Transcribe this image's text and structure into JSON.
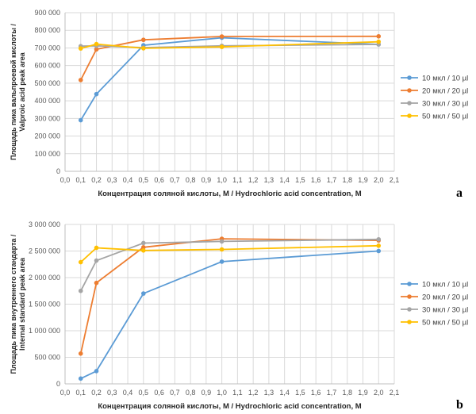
{
  "colors": {
    "10": "#5b9bd5",
    "20": "#ed7d31",
    "30": "#a5a5a5",
    "50": "#ffc000"
  },
  "chart_data": [
    {
      "type": "line",
      "panel": "a",
      "ylabel_line1": "Площадь пика вальпроевой кислоты /",
      "ylabel_line2": "Valproic acid peak area",
      "xlabel": "Концентрация соляной кислоты, М / Hydrochloric acid concentration, M",
      "xlim": [
        0,
        2.1
      ],
      "ylim": [
        0,
        900000
      ],
      "xticks": [
        "0,0",
        "0,1",
        "0,2",
        "0,3",
        "0,4",
        "0,5",
        "0,6",
        "0,7",
        "0,8",
        "0,9",
        "1,0",
        "1,1",
        "1,2",
        "1,3",
        "1,4",
        "1,5",
        "1,6",
        "1,7",
        "1,8",
        "1,9",
        "2,0",
        "2,1"
      ],
      "yticks": [
        "0",
        "100 000",
        "200 000",
        "300 000",
        "400 000",
        "500 000",
        "600 000",
        "700 000",
        "800 000",
        "900 000"
      ],
      "x": [
        0.1,
        0.2,
        0.5,
        1.0,
        2.0
      ],
      "series": [
        {
          "name": "10 мкл / 10 µl",
          "key": "10",
          "values": [
            290000,
            438000,
            715000,
            758000,
            720000
          ]
        },
        {
          "name": "20 мкл / 20 µl",
          "key": "20",
          "values": [
            518000,
            692000,
            746000,
            765000,
            766000
          ]
        },
        {
          "name": "30 мкл / 30 µl",
          "key": "30",
          "values": [
            710000,
            712000,
            702000,
            712000,
            720000
          ]
        },
        {
          "name": "50 мкл / 50 µl",
          "key": "50",
          "values": [
            697000,
            722000,
            698000,
            706000,
            735000
          ]
        }
      ]
    },
    {
      "type": "line",
      "panel": "b",
      "ylabel_line1": "Площадь пика внутреннего стандарта /",
      "ylabel_line2": "Internal standard peak area",
      "xlabel": "Концентрация соляной кислоты, М / Hydrochloric acid concentration, M",
      "xlim": [
        0,
        2.1
      ],
      "ylim": [
        0,
        3000000
      ],
      "xticks": [
        "0,0",
        "0,1",
        "0,2",
        "0,3",
        "0,4",
        "0,5",
        "0,6",
        "0,7",
        "0,8",
        "0,9",
        "1,0",
        "1,1",
        "1,2",
        "1,3",
        "1,4",
        "1,5",
        "1,6",
        "1,7",
        "1,8",
        "1,9",
        "2,0",
        "2,1"
      ],
      "yticks": [
        "0",
        "500 000",
        "1 000 000",
        "1 500 000",
        "2 000 000",
        "2 500 000",
        "3 000 000"
      ],
      "x": [
        0.1,
        0.2,
        0.5,
        1.0,
        2.0
      ],
      "series": [
        {
          "name": "10 мкл / 10 µl",
          "key": "10",
          "values": [
            100000,
            240000,
            1700000,
            2300000,
            2500000
          ]
        },
        {
          "name": "20 мкл / 20 µl",
          "key": "20",
          "values": [
            570000,
            1900000,
            2570000,
            2730000,
            2700000
          ]
        },
        {
          "name": "30 мкл / 30 µl",
          "key": "30",
          "values": [
            1750000,
            2320000,
            2650000,
            2680000,
            2720000
          ]
        },
        {
          "name": "50 мкл / 50 µl",
          "key": "50",
          "values": [
            2290000,
            2560000,
            2510000,
            2530000,
            2600000
          ]
        }
      ]
    }
  ]
}
